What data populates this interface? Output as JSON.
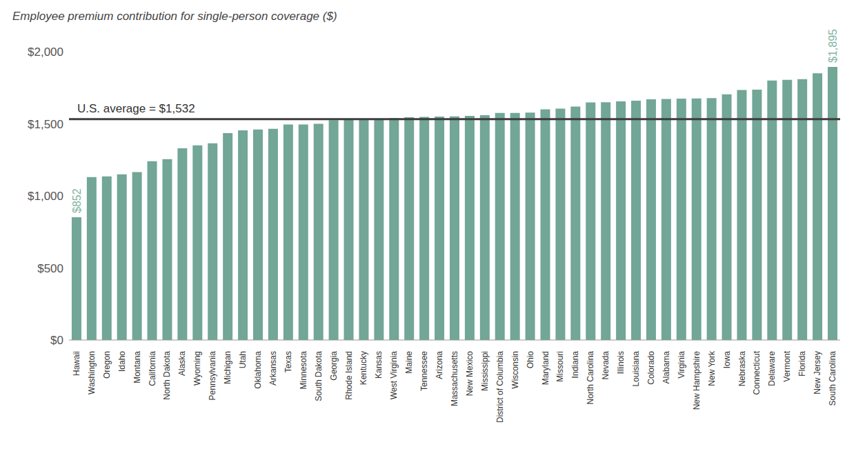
{
  "chart_data": {
    "type": "bar",
    "title": "Employee premium contribution for single-person coverage ($)",
    "categories": [
      "Hawaii",
      "Washington",
      "Oregon",
      "Idaho",
      "Montana",
      "California",
      "North Dakota",
      "Alaska",
      "Wyoming",
      "Pennsylvania",
      "Michigan",
      "Utah",
      "Oklahoma",
      "Arkansas",
      "Texas",
      "Minnesota",
      "South Dakota",
      "Georgia",
      "Rhode Island",
      "Kentucky",
      "Kansas",
      "West Virginia",
      "Maine",
      "Tennessee",
      "Arizona",
      "Massachusetts",
      "New Mexico",
      "Mississippi",
      "District of Columbia",
      "Wisconsin",
      "Ohio",
      "Maryland",
      "Missouri",
      "Indiana",
      "North Carolina",
      "Nevada",
      "Illinois",
      "Louisiana",
      "Colorado",
      "Alabama",
      "Virginia",
      "New Hampshire",
      "New York",
      "Iowa",
      "Nebraska",
      "Connecticut",
      "Delaware",
      "Vermont",
      "Florida",
      "New Jersey",
      "South Carolina"
    ],
    "values": [
      852,
      1130,
      1135,
      1150,
      1165,
      1240,
      1255,
      1330,
      1350,
      1365,
      1435,
      1455,
      1460,
      1465,
      1495,
      1495,
      1500,
      1525,
      1528,
      1530,
      1532,
      1540,
      1545,
      1548,
      1550,
      1552,
      1555,
      1560,
      1575,
      1575,
      1578,
      1600,
      1605,
      1620,
      1648,
      1650,
      1655,
      1660,
      1670,
      1672,
      1675,
      1676,
      1678,
      1705,
      1735,
      1737,
      1800,
      1805,
      1810,
      1850,
      1895
    ],
    "value_labels": [
      "$852",
      null,
      null,
      null,
      null,
      null,
      null,
      null,
      null,
      null,
      null,
      null,
      null,
      null,
      null,
      null,
      null,
      null,
      null,
      null,
      null,
      null,
      null,
      null,
      null,
      null,
      null,
      null,
      null,
      null,
      null,
      null,
      null,
      null,
      null,
      null,
      null,
      null,
      null,
      null,
      null,
      null,
      null,
      null,
      null,
      null,
      null,
      null,
      null,
      null,
      "$1,895"
    ],
    "color": "#72a696",
    "ylim": [
      0,
      2000
    ],
    "yticks": [
      {
        "value": 0,
        "label": "$0"
      },
      {
        "value": 500,
        "label": "$500"
      },
      {
        "value": 1000,
        "label": "$1,000"
      },
      {
        "value": 1500,
        "label": "$1,500"
      },
      {
        "value": 2000,
        "label": "$2,000"
      }
    ],
    "reference_line": {
      "value": 1532,
      "label": "U.S. average = $1,532"
    },
    "grid": false
  }
}
